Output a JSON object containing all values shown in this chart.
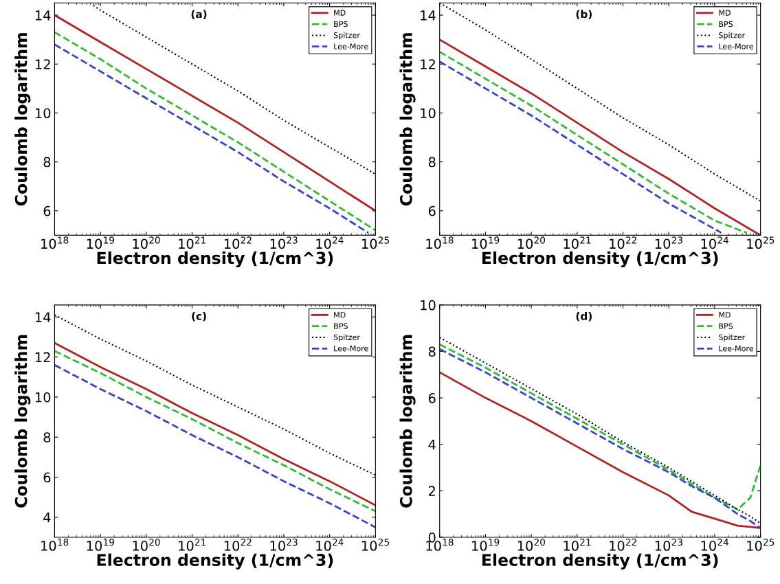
{
  "chart_data": [
    {
      "type": "line",
      "xlabel": "Electron density (1/cm^3)",
      "ylabel": "Coulomb logarithm",
      "annotations": [
        "(a)"
      ],
      "log": "x",
      "legend": "top right",
      "grid": false,
      "xlim": [
        1e+18,
        1e+25
      ],
      "ylim": [
        5,
        14.5
      ],
      "xticks": [
        {
          "value": 1e+18,
          "label": "10$^{18}$"
        },
        {
          "value": 1e+19,
          "label": "10$^{19}$"
        },
        {
          "value": 1e+20,
          "label": "10$^{20}$"
        },
        {
          "value": 1e+21,
          "label": "10$^{21}$"
        },
        {
          "value": 1e+22,
          "label": "10$^{22}$"
        },
        {
          "value": 1e+23,
          "label": "10$^{23}$"
        },
        {
          "value": 1e+24,
          "label": "10$^{24}$"
        },
        {
          "value": 1e+25,
          "label": "10$^{25}$"
        }
      ],
      "yticks": [
        6,
        8,
        10,
        12,
        14
      ],
      "x": [
        1e+18,
        1e+19,
        1e+20,
        1e+21,
        1e+22,
        1e+23,
        1e+24,
        1e+25
      ],
      "series": [
        {
          "name": "MD",
          "color": "#b22222",
          "line_style": "solid",
          "values": [
            14.0,
            12.9,
            11.8,
            10.7,
            9.6,
            8.4,
            7.2,
            6.0
          ]
        },
        {
          "name": "BPS",
          "color": "#33bb33",
          "line_style": "dashed",
          "values": [
            13.3,
            12.2,
            11.0,
            9.9,
            8.8,
            7.6,
            6.4,
            5.2
          ]
        },
        {
          "name": "Spitzer",
          "color": "#000000",
          "line_style": "dotted",
          "x": [
            7e+18,
            1e+19,
            1e+20,
            1e+21,
            1e+22,
            1e+23,
            1e+24,
            1e+25
          ],
          "values": [
            14.4,
            14.2,
            13.1,
            12.0,
            10.9,
            9.7,
            8.6,
            7.5
          ]
        },
        {
          "name": "Lee-More",
          "color": "#3344cc",
          "line_style": "dashed",
          "x": [
            1e+18,
            1e+19,
            1e+20,
            1e+21,
            1e+22,
            1e+23,
            1e+24,
            7e+24
          ],
          "values": [
            12.8,
            11.7,
            10.6,
            9.5,
            8.4,
            7.2,
            6.1,
            5.1
          ]
        }
      ]
    },
    {
      "type": "line",
      "xlabel": "Electron density (1/cm^3)",
      "ylabel": "Coulomb logarithm",
      "annotations": [
        "(b)"
      ],
      "log": "x",
      "legend": "top right",
      "grid": false,
      "xlim": [
        1e+18,
        1e+25
      ],
      "ylim": [
        5,
        14.5
      ],
      "xticks": [
        {
          "value": 1e+18,
          "label": "10$^{18}$"
        },
        {
          "value": 1e+19,
          "label": "10$^{19}$"
        },
        {
          "value": 1e+20,
          "label": "10$^{20}$"
        },
        {
          "value": 1e+21,
          "label": "10$^{21}$"
        },
        {
          "value": 1e+22,
          "label": "10$^{22}$"
        },
        {
          "value": 1e+23,
          "label": "10$^{23}$"
        },
        {
          "value": 1e+24,
          "label": "10$^{24}$"
        },
        {
          "value": 1e+25,
          "label": "10$^{25}$"
        }
      ],
      "yticks": [
        6,
        8,
        10,
        12,
        14
      ],
      "x": [
        1e+18,
        1e+19,
        1e+20,
        1e+21,
        1e+22,
        1e+23,
        1e+24,
        1e+25
      ],
      "series": [
        {
          "name": "MD",
          "color": "#b22222",
          "line_style": "solid",
          "values": [
            13.0,
            11.9,
            10.8,
            9.6,
            8.4,
            7.3,
            6.1,
            5.0
          ]
        },
        {
          "name": "BPS",
          "color": "#33bb33",
          "line_style": "dashed",
          "x": [
            1e+18,
            1e+19,
            1e+20,
            1e+21,
            1e+22,
            1e+23,
            1e+24,
            5e+24
          ],
          "values": [
            12.5,
            11.4,
            10.3,
            9.1,
            7.9,
            6.7,
            5.6,
            5.1
          ]
        },
        {
          "name": "Spitzer",
          "color": "#000000",
          "line_style": "dotted",
          "values": [
            14.5,
            13.4,
            12.2,
            11.0,
            9.8,
            8.7,
            7.5,
            6.4
          ]
        },
        {
          "name": "Lee-More",
          "color": "#3344cc",
          "line_style": "dashed",
          "x": [
            1e+18,
            1e+19,
            1e+20,
            1e+21,
            1e+22,
            1e+23,
            1.4e+24
          ],
          "values": [
            12.1,
            11.0,
            9.9,
            8.7,
            7.5,
            6.3,
            5.1
          ]
        }
      ]
    },
    {
      "type": "line",
      "xlabel": "Electron density (1/cm^3)",
      "ylabel": "Coulomb logarithm",
      "annotations": [
        "(c)"
      ],
      "log": "x",
      "legend": "top right",
      "grid": false,
      "xlim": [
        1e+18,
        1e+25
      ],
      "ylim": [
        3,
        14.6
      ],
      "xticks": [
        {
          "value": 1e+18,
          "label": "10$^{18}$"
        },
        {
          "value": 1e+19,
          "label": "10$^{19}$"
        },
        {
          "value": 1e+20,
          "label": "10$^{20}$"
        },
        {
          "value": 1e+21,
          "label": "10$^{21}$"
        },
        {
          "value": 1e+22,
          "label": "10$^{22}$"
        },
        {
          "value": 1e+23,
          "label": "10$^{23}$"
        },
        {
          "value": 1e+24,
          "label": "10$^{24}$"
        },
        {
          "value": 1e+25,
          "label": "10$^{25}$"
        }
      ],
      "yticks": [
        4,
        6,
        8,
        10,
        12,
        14
      ],
      "x": [
        1e+18,
        1e+19,
        1e+20,
        1e+21,
        1e+22,
        1e+23,
        1e+24,
        1e+25
      ],
      "series": [
        {
          "name": "MD",
          "color": "#b22222",
          "line_style": "solid",
          "values": [
            12.7,
            11.5,
            10.4,
            9.2,
            8.1,
            6.9,
            5.8,
            4.6
          ]
        },
        {
          "name": "BPS",
          "color": "#33bb33",
          "line_style": "dashed",
          "values": [
            12.3,
            11.2,
            10.0,
            8.9,
            7.7,
            6.6,
            5.4,
            4.3
          ]
        },
        {
          "name": "Spitzer",
          "color": "#000000",
          "line_style": "dotted",
          "values": [
            14.1,
            12.9,
            11.8,
            10.6,
            9.5,
            8.4,
            7.2,
            6.1
          ]
        },
        {
          "name": "Lee-More",
          "color": "#3344cc",
          "line_style": "dashed",
          "values": [
            11.6,
            10.4,
            9.3,
            8.1,
            7.0,
            5.8,
            4.7,
            3.5
          ]
        }
      ]
    },
    {
      "type": "line",
      "xlabel": "Electron density (1/cm^3)",
      "ylabel": "Coulomb logarithm",
      "annotations": [
        "(d)"
      ],
      "log": "x",
      "legend": "top right",
      "grid": false,
      "xlim": [
        1e+18,
        1e+25
      ],
      "ylim": [
        0,
        10
      ],
      "xticks": [
        {
          "value": 1e+18,
          "label": "10$^{18}$"
        },
        {
          "value": 1e+19,
          "label": "10$^{19}$"
        },
        {
          "value": 1e+20,
          "label": "10$^{20}$"
        },
        {
          "value": 1e+21,
          "label": "10$^{21}$"
        },
        {
          "value": 1e+22,
          "label": "10$^{22}$"
        },
        {
          "value": 1e+23,
          "label": "10$^{23}$"
        },
        {
          "value": 1e+24,
          "label": "10$^{24}$"
        },
        {
          "value": 1e+25,
          "label": "10$^{25}$"
        }
      ],
      "yticks": [
        0,
        2,
        4,
        6,
        8,
        10
      ],
      "x": [
        1e+18,
        1e+19,
        1e+20,
        1e+21,
        1e+22,
        1e+23,
        3.16e+23,
        1e+24,
        3.16e+24,
        6e+24,
        1e+25
      ],
      "series": [
        {
          "name": "MD",
          "color": "#b22222",
          "line_style": "solid",
          "values": [
            7.1,
            6.0,
            5.0,
            3.9,
            2.8,
            1.8,
            1.1,
            0.8,
            0.5,
            0.45,
            0.4
          ]
        },
        {
          "name": "BPS",
          "color": "#33bb33",
          "line_style": "dashed",
          "values": [
            8.3,
            7.3,
            6.2,
            5.1,
            4.0,
            2.9,
            2.3,
            1.7,
            1.2,
            1.7,
            3.1
          ]
        },
        {
          "name": "Spitzer",
          "color": "#000000",
          "line_style": "dotted",
          "values": [
            8.6,
            7.5,
            6.4,
            5.3,
            4.1,
            3.0,
            2.4,
            1.8,
            1.2,
            0.9,
            0.6
          ]
        },
        {
          "name": "Lee-More",
          "color": "#3344cc",
          "line_style": "dashed",
          "values": [
            8.1,
            7.1,
            6.0,
            4.9,
            3.8,
            2.8,
            2.2,
            1.7,
            1.0,
            0.7,
            0.4
          ]
        }
      ]
    }
  ]
}
